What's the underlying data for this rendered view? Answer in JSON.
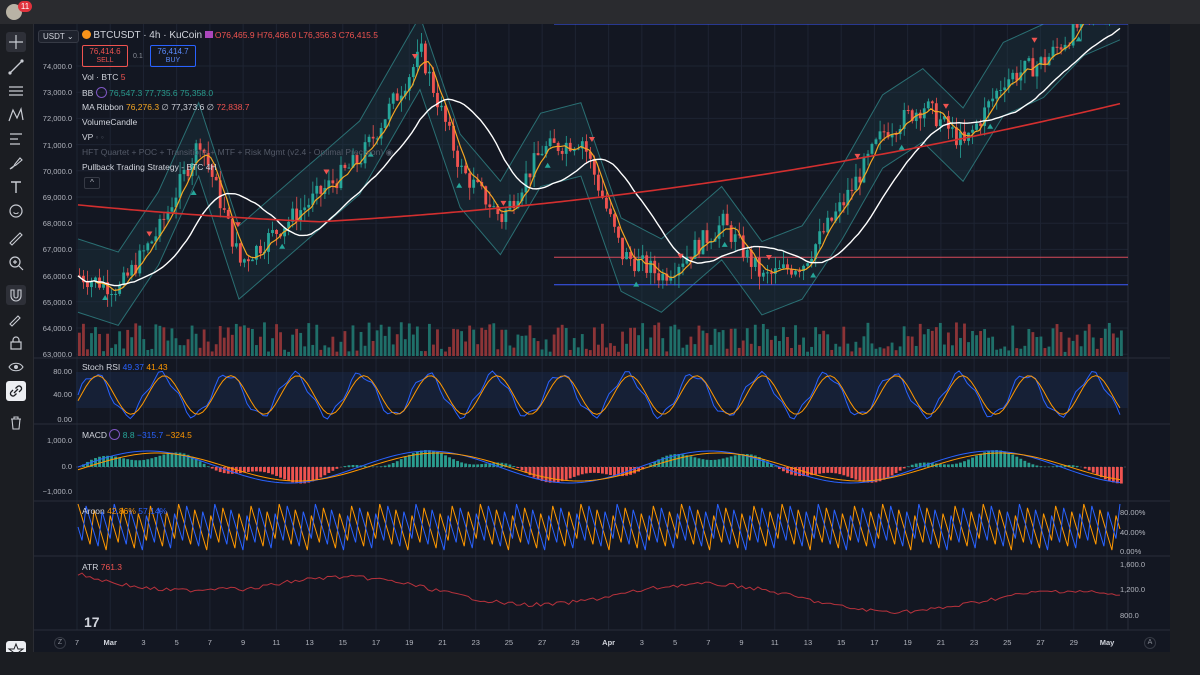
{
  "app": {
    "notification_count": "11"
  },
  "symbol": {
    "currency": "USDT",
    "title": "BTCUSDT · 4h · KuCoin",
    "open": "O76,465.9",
    "high": "H76,466.0",
    "low": "L76,356.3",
    "close": "C76,415.5"
  },
  "trade": {
    "sell_price": "76,414.6",
    "sell_label": "SELL",
    "spread": "0.1",
    "buy_price": "76,414.7",
    "buy_label": "BUY"
  },
  "indicators": {
    "vol": {
      "name": "Vol · BTC",
      "value": "5"
    },
    "bb": {
      "name": "BB",
      "v1": "76,547.3",
      "v2": "77,735.6",
      "v3": "75,358.0"
    },
    "ma": {
      "name": "MA Ribbon",
      "v1": "76,276.3",
      "v2": "77,373.6",
      "v3": "72,838.7"
    },
    "volume_candle": "VolumeCandle",
    "vp": "VP",
    "hft": "HFT Quartet + POC + Transitions + MTF + Risk Mgmt (v2.4 - Optimal Precision)",
    "pullback": "Pullback Trading Strategy - BTC 4H"
  },
  "price_axis": [
    "74,000.0",
    "73,000.0",
    "72,000.0",
    "71,000.0",
    "70,000.0",
    "69,000.0",
    "68,000.0",
    "67,000.0",
    "66,000.0",
    "65,000.0",
    "64,000.0",
    "63,000.0"
  ],
  "stoch": {
    "name": "Stoch RSI",
    "k": "49.37",
    "d": "41.43",
    "axis": [
      "80.00",
      "40.00",
      "0.00"
    ]
  },
  "macd": {
    "name": "MACD",
    "v1": "8.8",
    "v2": "−315.7",
    "v3": "−324.5",
    "axis": [
      "1,000.0",
      "0.0",
      "−1,000.0"
    ]
  },
  "aroon": {
    "name": "Aroon",
    "up": "42.86%",
    "down": "57.14%",
    "axis": [
      "80.00%",
      "40.00%",
      "0.00%"
    ]
  },
  "atr": {
    "name": "ATR",
    "value": "761.3",
    "axis": [
      "1,600.0",
      "1,200.0",
      "800.0"
    ]
  },
  "time_axis": [
    "7",
    "Mar",
    "3",
    "5",
    "7",
    "9",
    "11",
    "13",
    "15",
    "17",
    "19",
    "21",
    "23",
    "25",
    "27",
    "29",
    "Apr",
    "3",
    "5",
    "7",
    "9",
    "11",
    "13",
    "15",
    "17",
    "19",
    "21",
    "23",
    "25",
    "27",
    "29",
    "May"
  ],
  "bottom": {
    "left_btn": "Z",
    "right_btn": "A"
  },
  "colors": {
    "bg": "#131722",
    "up": "#26a69a",
    "down": "#ef5350",
    "bb": "#2a6f73",
    "ma_fast": "#f5a623",
    "ma_mid": "#ffffff",
    "ma_slow": "#d32f2f",
    "stoch_k": "#2962ff",
    "stoch_d": "#ff9800"
  }
}
